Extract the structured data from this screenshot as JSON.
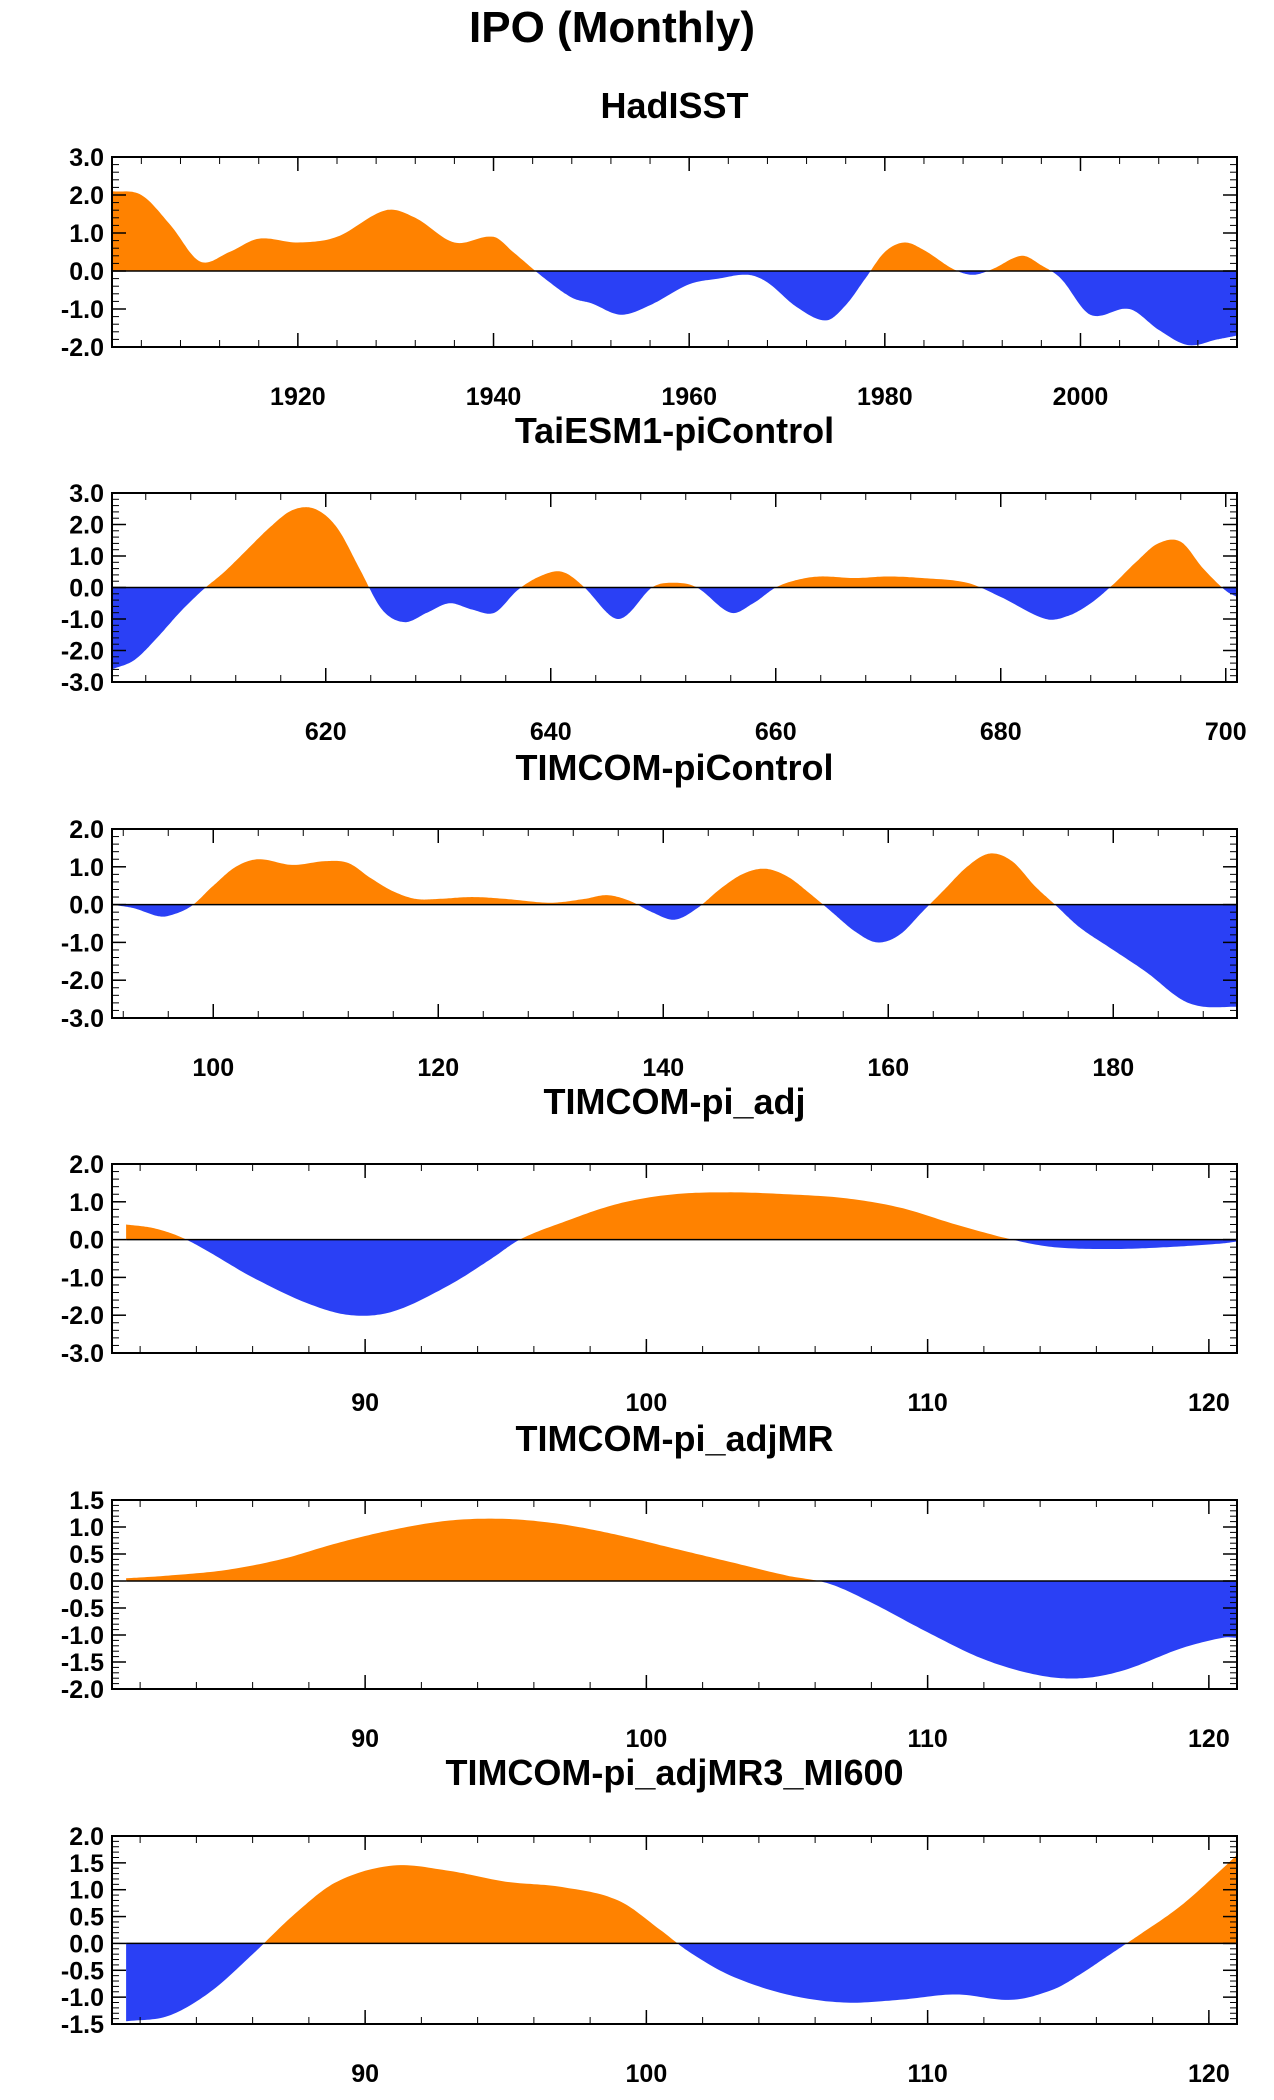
{
  "figure": {
    "title": "IPO (Monthly)",
    "positive_color": "#FF8200",
    "negative_color": "#2A40F5"
  },
  "chart_data": [
    {
      "type": "area",
      "title": "HadISST",
      "xlim": [
        1901,
        2016
      ],
      "ylim": [
        -2.0,
        3.0
      ],
      "yticks": [
        3.0,
        2.0,
        1.0,
        0.0,
        -1.0,
        -2.0
      ],
      "ytick_labels": [
        "3.0",
        "2.0",
        "1.0",
        "0.0",
        "-1.0",
        "-2.0"
      ],
      "xticks": [
        1920,
        1940,
        1960,
        1980,
        2000
      ],
      "xtick_labels": [
        "1920",
        "1940",
        "1960",
        "1980",
        "2000"
      ],
      "x": [
        1901,
        1904,
        1907,
        1910,
        1913,
        1916,
        1920,
        1924,
        1929,
        1932,
        1936,
        1940,
        1942,
        1945,
        1948,
        1950,
        1953,
        1956,
        1960,
        1963,
        1966,
        1968,
        1971,
        1974,
        1976,
        1978,
        1980,
        1982,
        1984,
        1987,
        1989,
        1991,
        1994,
        1996,
        1998,
        2001,
        2005,
        2008,
        2011,
        2014,
        2016
      ],
      "values": [
        2.1,
        2.0,
        1.2,
        0.25,
        0.5,
        0.85,
        0.75,
        0.9,
        1.6,
        1.4,
        0.75,
        0.9,
        0.5,
        -0.15,
        -0.7,
        -0.85,
        -1.15,
        -0.9,
        -0.35,
        -0.2,
        -0.1,
        -0.3,
        -0.95,
        -1.3,
        -0.9,
        -0.2,
        0.5,
        0.75,
        0.55,
        0.05,
        -0.1,
        0.05,
        0.4,
        0.15,
        -0.2,
        -1.15,
        -1.0,
        -1.55,
        -1.95,
        -1.8,
        -1.7
      ]
    },
    {
      "type": "area",
      "title": "TaiESM1-piControl",
      "xlim": [
        601,
        701
      ],
      "ylim": [
        -3.0,
        3.0
      ],
      "yticks": [
        3.0,
        2.0,
        1.0,
        0.0,
        -1.0,
        -2.0,
        -3.0
      ],
      "ytick_labels": [
        "3.0",
        "2.0",
        "1.0",
        "0.0",
        "-1.0",
        "-2.0",
        "-3.0"
      ],
      "xticks": [
        620,
        640,
        660,
        680,
        700
      ],
      "xtick_labels": [
        "620",
        "640",
        "660",
        "680",
        "700"
      ],
      "x": [
        601,
        603,
        605,
        607,
        609,
        611,
        613,
        615,
        617,
        619,
        621,
        623,
        625,
        627,
        629,
        631,
        633,
        635,
        637,
        639,
        641,
        643,
        645,
        646,
        647,
        649,
        651,
        653,
        656,
        658,
        660,
        662,
        664,
        667,
        670,
        673,
        677,
        680,
        684,
        686,
        688,
        690,
        692,
        694,
        696,
        698,
        700,
        701
      ],
      "values": [
        -2.6,
        -2.3,
        -1.6,
        -0.8,
        -0.1,
        0.5,
        1.2,
        1.9,
        2.45,
        2.5,
        1.9,
        0.6,
        -0.7,
        -1.1,
        -0.8,
        -0.5,
        -0.7,
        -0.8,
        -0.1,
        0.35,
        0.5,
        0.0,
        -0.8,
        -1.0,
        -0.8,
        0.0,
        0.15,
        0.0,
        -0.8,
        -0.5,
        0.0,
        0.25,
        0.35,
        0.3,
        0.35,
        0.3,
        0.15,
        -0.3,
        -1.0,
        -0.9,
        -0.5,
        0.1,
        0.8,
        1.4,
        1.45,
        0.6,
        -0.1,
        -0.3
      ]
    },
    {
      "type": "area",
      "title": "TIMCOM-piControl",
      "xlim": [
        91,
        191
      ],
      "ylim": [
        -3.0,
        2.0
      ],
      "yticks": [
        2.0,
        1.0,
        0.0,
        -1.0,
        -2.0,
        -3.0
      ],
      "ytick_labels": [
        "2.0",
        "1.0",
        "0.0",
        "-1.0",
        "-2.0",
        "-3.0"
      ],
      "xticks": [
        100,
        120,
        140,
        160,
        180
      ],
      "xtick_labels": [
        "100",
        "120",
        "140",
        "160",
        "180"
      ],
      "x": [
        91,
        93,
        95,
        96,
        98,
        100,
        102,
        104,
        107,
        110,
        112,
        114,
        116,
        118,
        120,
        123,
        126,
        130,
        133,
        135,
        137,
        139,
        141,
        143,
        145,
        147,
        149,
        151,
        153,
        155,
        157,
        159,
        161,
        163,
        165,
        167,
        169,
        171,
        173,
        175,
        177,
        180,
        183,
        186,
        188,
        191
      ],
      "values": [
        0.0,
        -0.1,
        -0.3,
        -0.3,
        -0.05,
        0.5,
        1.0,
        1.2,
        1.05,
        1.15,
        1.1,
        0.7,
        0.35,
        0.15,
        0.15,
        0.2,
        0.15,
        0.05,
        0.15,
        0.25,
        0.1,
        -0.2,
        -0.4,
        -0.1,
        0.4,
        0.8,
        0.95,
        0.75,
        0.3,
        -0.2,
        -0.7,
        -1.0,
        -0.8,
        -0.2,
        0.4,
        1.0,
        1.35,
        1.15,
        0.5,
        -0.05,
        -0.6,
        -1.2,
        -1.8,
        -2.5,
        -2.7,
        -2.7
      ]
    },
    {
      "type": "area",
      "title": "TIMCOM-pi_adj",
      "xlim": [
        81,
        121
      ],
      "ylim": [
        -3.0,
        2.0
      ],
      "yticks": [
        2.0,
        1.0,
        0.0,
        -1.0,
        -2.0,
        -3.0
      ],
      "ytick_labels": [
        "2.0",
        "1.0",
        "0.0",
        "-1.0",
        "-2.0",
        "-3.0"
      ],
      "xticks": [
        90,
        100,
        110,
        120
      ],
      "xtick_labels": [
        "90",
        "100",
        "110",
        "120"
      ],
      "x": [
        81.5,
        82.5,
        83.5,
        84.5,
        86,
        88,
        89.5,
        91,
        93,
        94.5,
        95.5,
        97,
        99,
        101,
        103,
        105,
        107,
        109,
        111,
        113,
        114.5,
        116.5,
        118.5,
        120.5,
        121
      ],
      "values": [
        0.4,
        0.3,
        0.05,
        -0.35,
        -1.0,
        -1.7,
        -2.0,
        -1.9,
        -1.2,
        -0.5,
        0.0,
        0.45,
        0.95,
        1.2,
        1.25,
        1.2,
        1.1,
        0.85,
        0.4,
        0.0,
        -0.2,
        -0.25,
        -0.2,
        -0.1,
        -0.05
      ]
    },
    {
      "type": "area",
      "title": "TIMCOM-pi_adjMR",
      "xlim": [
        81,
        121
      ],
      "ylim": [
        -2.0,
        1.5
      ],
      "yticks": [
        1.5,
        1.0,
        0.5,
        0.0,
        -0.5,
        -1.0,
        -1.5,
        -2.0
      ],
      "ytick_labels": [
        "1.5",
        "1.0",
        "0.5",
        "0.0",
        "-0.5",
        "-1.0",
        "-1.5",
        "-2.0"
      ],
      "xticks": [
        90,
        100,
        110,
        120
      ],
      "xtick_labels": [
        "90",
        "100",
        "110",
        "120"
      ],
      "x": [
        81.5,
        83,
        85,
        87,
        89,
        91,
        93,
        95,
        97,
        99,
        101,
        103,
        105,
        106.5,
        108,
        110,
        112,
        114,
        115.5,
        117,
        119,
        120.5,
        121
      ],
      "values": [
        0.05,
        0.1,
        0.2,
        0.4,
        0.7,
        0.95,
        1.12,
        1.15,
        1.05,
        0.85,
        0.6,
        0.35,
        0.1,
        -0.05,
        -0.4,
        -0.95,
        -1.45,
        -1.75,
        -1.8,
        -1.65,
        -1.25,
        -1.05,
        -1.05
      ]
    },
    {
      "type": "area",
      "title": "TIMCOM-pi_adjMR3_MI600",
      "xlim": [
        81,
        121
      ],
      "ylim": [
        -1.5,
        2.0
      ],
      "yticks": [
        2.0,
        1.5,
        1.0,
        0.5,
        0.0,
        -0.5,
        -1.0,
        -1.5
      ],
      "ytick_labels": [
        "2.0",
        "1.5",
        "1.0",
        "0.5",
        "0.0",
        "-0.5",
        "-1.0",
        "-1.5"
      ],
      "xticks": [
        90,
        100,
        110,
        120
      ],
      "xtick_labels": [
        "90",
        "100",
        "110",
        "120"
      ],
      "x": [
        81.5,
        83,
        84.5,
        86,
        87.5,
        89,
        91,
        93,
        95,
        97,
        99,
        100.5,
        101.5,
        103,
        105,
        107,
        109,
        111,
        113,
        114.5,
        115.5,
        116.5,
        117.5,
        119,
        120.5,
        121
      ],
      "values": [
        -1.45,
        -1.35,
        -0.9,
        -0.2,
        0.55,
        1.15,
        1.45,
        1.35,
        1.15,
        1.05,
        0.8,
        0.25,
        -0.15,
        -0.6,
        -0.95,
        -1.1,
        -1.05,
        -0.95,
        -1.05,
        -0.85,
        -0.55,
        -0.2,
        0.15,
        0.7,
        1.4,
        1.65
      ]
    }
  ]
}
